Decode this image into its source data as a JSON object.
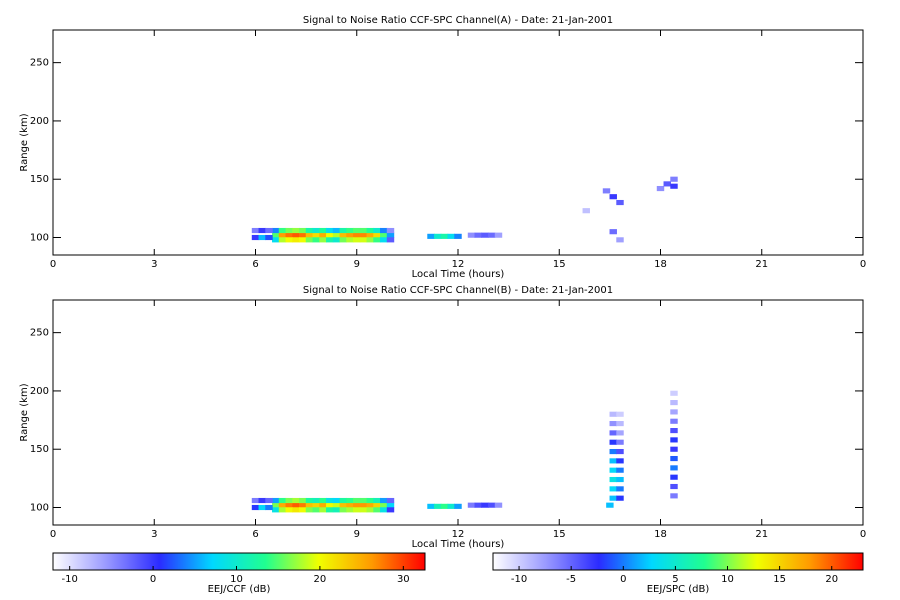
{
  "chart_data": [
    {
      "type": "heatmap",
      "title": "Signal to Noise Ratio CCF-SPC Channel(A) - Date: 21-Jan-2001",
      "xlabel": "Local Time (hours)",
      "ylabel": "Range (km)",
      "xlim": [
        0,
        24
      ],
      "xticks": [
        0,
        3,
        6,
        9,
        12,
        15,
        18,
        21,
        {
          "value": 24,
          "label": "0"
        }
      ],
      "ylim": [
        85,
        278
      ],
      "yticks": [
        100,
        150,
        200,
        250
      ],
      "colormap": [
        "#ffffff",
        "#9a9aff",
        "#2b2bff",
        "#00d8ff",
        "#20ff90",
        "#f0ff00",
        "#ff9a00",
        "#ff0000"
      ],
      "colorbar": {
        "label": "EEJ/CCF (dB)",
        "lim": [
          -12,
          32.6
        ],
        "ticks": [
          -10,
          0,
          10,
          20,
          30
        ]
      },
      "cells": {
        "x": [
          6.6,
          6.8,
          7.0,
          7.2,
          7.4,
          7.6,
          7.8,
          8.0,
          8.2,
          8.4,
          8.6,
          8.8,
          9.0,
          9.2,
          9.4,
          9.6,
          9.8,
          10.0,
          6.6,
          6.8,
          7.0,
          7.2,
          7.4,
          7.6,
          7.8,
          8.0,
          8.2,
          8.4,
          8.6,
          8.8,
          9.0,
          9.2,
          9.4,
          9.6,
          9.8,
          10.0,
          6.6,
          6.8,
          7.0,
          7.2,
          7.4,
          7.6,
          7.8,
          8.0,
          8.2,
          8.4,
          8.6,
          8.8,
          9.0,
          9.2,
          9.4,
          9.6,
          9.8,
          10.0,
          6.0,
          6.2,
          6.4,
          6.0,
          6.2,
          6.4,
          11.2,
          11.4,
          11.6,
          11.8,
          12.0,
          12.4,
          12.6,
          12.8,
          13.0,
          13.2,
          16.4,
          16.6,
          16.8,
          16.6,
          16.8,
          18.0,
          18.2,
          18.4,
          18.4,
          15.8
        ],
        "y": [
          102,
          102,
          102,
          102,
          102,
          102,
          102,
          102,
          102,
          102,
          102,
          102,
          102,
          102,
          102,
          102,
          102,
          102,
          98,
          98,
          98,
          98,
          98,
          98,
          98,
          98,
          98,
          98,
          98,
          98,
          98,
          98,
          98,
          98,
          98,
          98,
          106,
          106,
          106,
          106,
          106,
          106,
          106,
          106,
          106,
          106,
          106,
          106,
          106,
          106,
          106,
          106,
          106,
          106,
          100,
          100,
          100,
          106,
          106,
          106,
          101,
          101,
          101,
          101,
          101,
          102,
          102,
          102,
          102,
          102,
          140,
          135,
          130,
          105,
          98,
          142,
          146,
          144,
          150,
          123
        ],
        "values": [
          15,
          26,
          28,
          29,
          28,
          24,
          22,
          25,
          20,
          18,
          24,
          26,
          27,
          27,
          25,
          22,
          15,
          5,
          8,
          18,
          20,
          21,
          20,
          16,
          14,
          17,
          12,
          10,
          16,
          18,
          19,
          19,
          17,
          14,
          8,
          -2,
          4,
          14,
          16,
          17,
          16,
          12,
          10,
          13,
          8,
          6,
          12,
          14,
          15,
          15,
          13,
          10,
          4,
          -5,
          0,
          6,
          2,
          -4,
          0,
          -3,
          5,
          10,
          12,
          8,
          4,
          -5,
          -3,
          -2,
          -3,
          -6,
          -4,
          0,
          -2,
          -3,
          -6,
          -5,
          -2,
          0,
          -4,
          -8
        ]
      }
    },
    {
      "type": "heatmap",
      "title": "Signal to Noise Ratio CCF-SPC Channel(B) - Date: 21-Jan-2001",
      "xlabel": "Local Time (hours)",
      "ylabel": "Range (km)",
      "xlim": [
        0,
        24
      ],
      "xticks": [
        0,
        3,
        6,
        9,
        12,
        15,
        18,
        21,
        {
          "value": 24,
          "label": "0"
        }
      ],
      "ylim": [
        85,
        278
      ],
      "yticks": [
        100,
        150,
        200,
        250
      ],
      "colormap": [
        "#ffffff",
        "#9a9aff",
        "#2b2bff",
        "#00d8ff",
        "#20ff90",
        "#f0ff00",
        "#ff9a00",
        "#ff0000"
      ],
      "colorbar": {
        "label": "EEJ/SPC (dB)",
        "lim": [
          -12.5,
          23
        ],
        "ticks": [
          -10,
          -5,
          0,
          5,
          10,
          15,
          20
        ]
      },
      "cells": {
        "x": [
          6.6,
          6.8,
          7.0,
          7.2,
          7.4,
          7.6,
          7.8,
          8.0,
          8.2,
          8.4,
          8.6,
          8.8,
          9.0,
          9.2,
          9.4,
          9.6,
          9.8,
          10.0,
          6.6,
          6.8,
          7.0,
          7.2,
          7.4,
          7.6,
          7.8,
          8.0,
          8.2,
          8.4,
          8.6,
          8.8,
          9.0,
          9.2,
          9.4,
          9.6,
          9.8,
          10.0,
          6.6,
          6.8,
          7.0,
          7.2,
          7.4,
          7.6,
          7.8,
          8.0,
          8.2,
          8.4,
          8.6,
          8.8,
          9.0,
          9.2,
          9.4,
          9.6,
          9.8,
          10.0,
          6.0,
          6.2,
          6.4,
          6.0,
          6.2,
          6.4,
          11.2,
          11.4,
          11.6,
          11.8,
          12.0,
          12.4,
          12.6,
          12.8,
          13.0,
          13.2,
          16.6,
          16.6,
          16.6,
          16.6,
          16.6,
          16.6,
          16.6,
          16.6,
          16.6,
          16.6,
          16.8,
          16.8,
          16.8,
          16.8,
          16.8,
          16.8,
          16.8,
          16.8,
          16.8,
          16.8,
          18.4,
          18.4,
          18.4,
          18.4,
          18.4,
          18.4,
          18.4,
          18.4,
          18.4,
          18.4,
          18.4,
          18.4,
          16.5
        ],
        "y": [
          102,
          102,
          102,
          102,
          102,
          102,
          102,
          102,
          102,
          102,
          102,
          102,
          102,
          102,
          102,
          102,
          102,
          102,
          98,
          98,
          98,
          98,
          98,
          98,
          98,
          98,
          98,
          98,
          98,
          98,
          98,
          98,
          98,
          98,
          98,
          98,
          106,
          106,
          106,
          106,
          106,
          106,
          106,
          106,
          106,
          106,
          106,
          106,
          106,
          106,
          106,
          106,
          106,
          106,
          100,
          100,
          100,
          106,
          106,
          106,
          101,
          101,
          101,
          101,
          101,
          102,
          102,
          102,
          102,
          102,
          108,
          116,
          124,
          132,
          140,
          148,
          156,
          164,
          172,
          180,
          108,
          116,
          124,
          132,
          140,
          148,
          156,
          164,
          172,
          180,
          110,
          118,
          126,
          134,
          142,
          150,
          158,
          166,
          174,
          182,
          190,
          198,
          102
        ],
        "values": [
          10,
          17,
          19,
          20,
          19,
          16,
          15,
          17,
          13,
          12,
          16,
          17,
          18,
          18,
          17,
          15,
          10,
          3,
          4,
          11,
          13,
          14,
          13,
          10,
          9,
          11,
          7,
          6,
          10,
          11,
          12,
          12,
          11,
          9,
          4,
          -3,
          1,
          8,
          10,
          11,
          10,
          7,
          6,
          8,
          4,
          3,
          7,
          8,
          9,
          9,
          8,
          6,
          1,
          -5,
          -2,
          3,
          0,
          -6,
          -3,
          -5,
          2,
          6,
          8,
          5,
          1,
          -6,
          -4,
          -3,
          -4,
          -7,
          2,
          3,
          4,
          3,
          2,
          0,
          -2,
          -5,
          -7,
          -9,
          -2,
          0,
          2,
          0,
          -2,
          -4,
          -6,
          -8,
          -9,
          -10,
          -6,
          -4,
          -2,
          0,
          -1,
          -3,
          -2,
          -4,
          -6,
          -8,
          -9,
          -10,
          2
        ]
      }
    }
  ]
}
